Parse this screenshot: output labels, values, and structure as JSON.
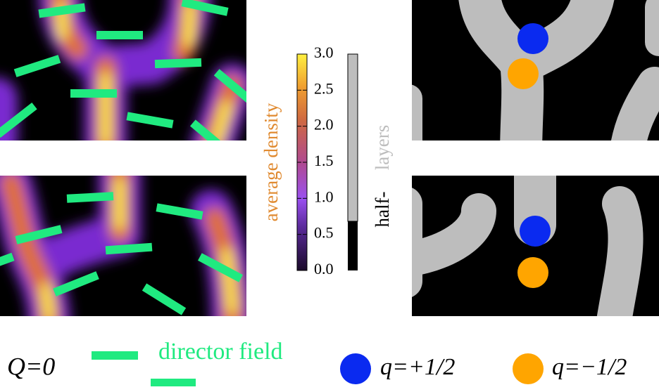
{
  "colorbar": {
    "label": "average density",
    "lim": [
      0,
      3
    ],
    "ticks": [
      {
        "value": 0,
        "label": "0.0"
      },
      {
        "value": 0.5,
        "label": "0.5"
      },
      {
        "value": 1,
        "label": "1.0"
      },
      {
        "value": 1.5,
        "label": "1.5"
      },
      {
        "value": 2,
        "label": "2.0"
      },
      {
        "value": 2.5,
        "label": "2.5"
      },
      {
        "value": 3,
        "label": "3.0"
      }
    ]
  },
  "layers_bar": {
    "label_black": "half-",
    "label_gray": "layers"
  },
  "legend": {
    "q_zero": "Q=0",
    "director": "director field",
    "plus": "q=+1/2",
    "minus": "q=−1/2"
  }
}
